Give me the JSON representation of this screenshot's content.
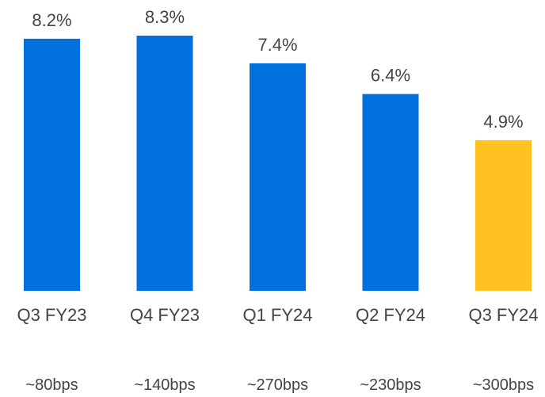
{
  "chart_data": {
    "type": "bar",
    "categories": [
      "Q3 FY23",
      "Q4 FY23",
      "Q1 FY24",
      "Q2 FY24",
      "Q3 FY24"
    ],
    "values": [
      8.2,
      8.3,
      7.4,
      6.4,
      4.9
    ],
    "value_labels": [
      "8.2%",
      "8.3%",
      "7.4%",
      "6.4%",
      "4.9%"
    ],
    "bps_labels": [
      "~80bps",
      "~140bps",
      "~270bps",
      "~230bps",
      "~300bps"
    ],
    "colors": [
      "#0070DD",
      "#0070DD",
      "#0070DD",
      "#0070DD",
      "#FFC220"
    ],
    "title": "",
    "xlabel": "",
    "ylabel": "",
    "ylim": [
      0,
      8.3
    ],
    "grid": false
  }
}
